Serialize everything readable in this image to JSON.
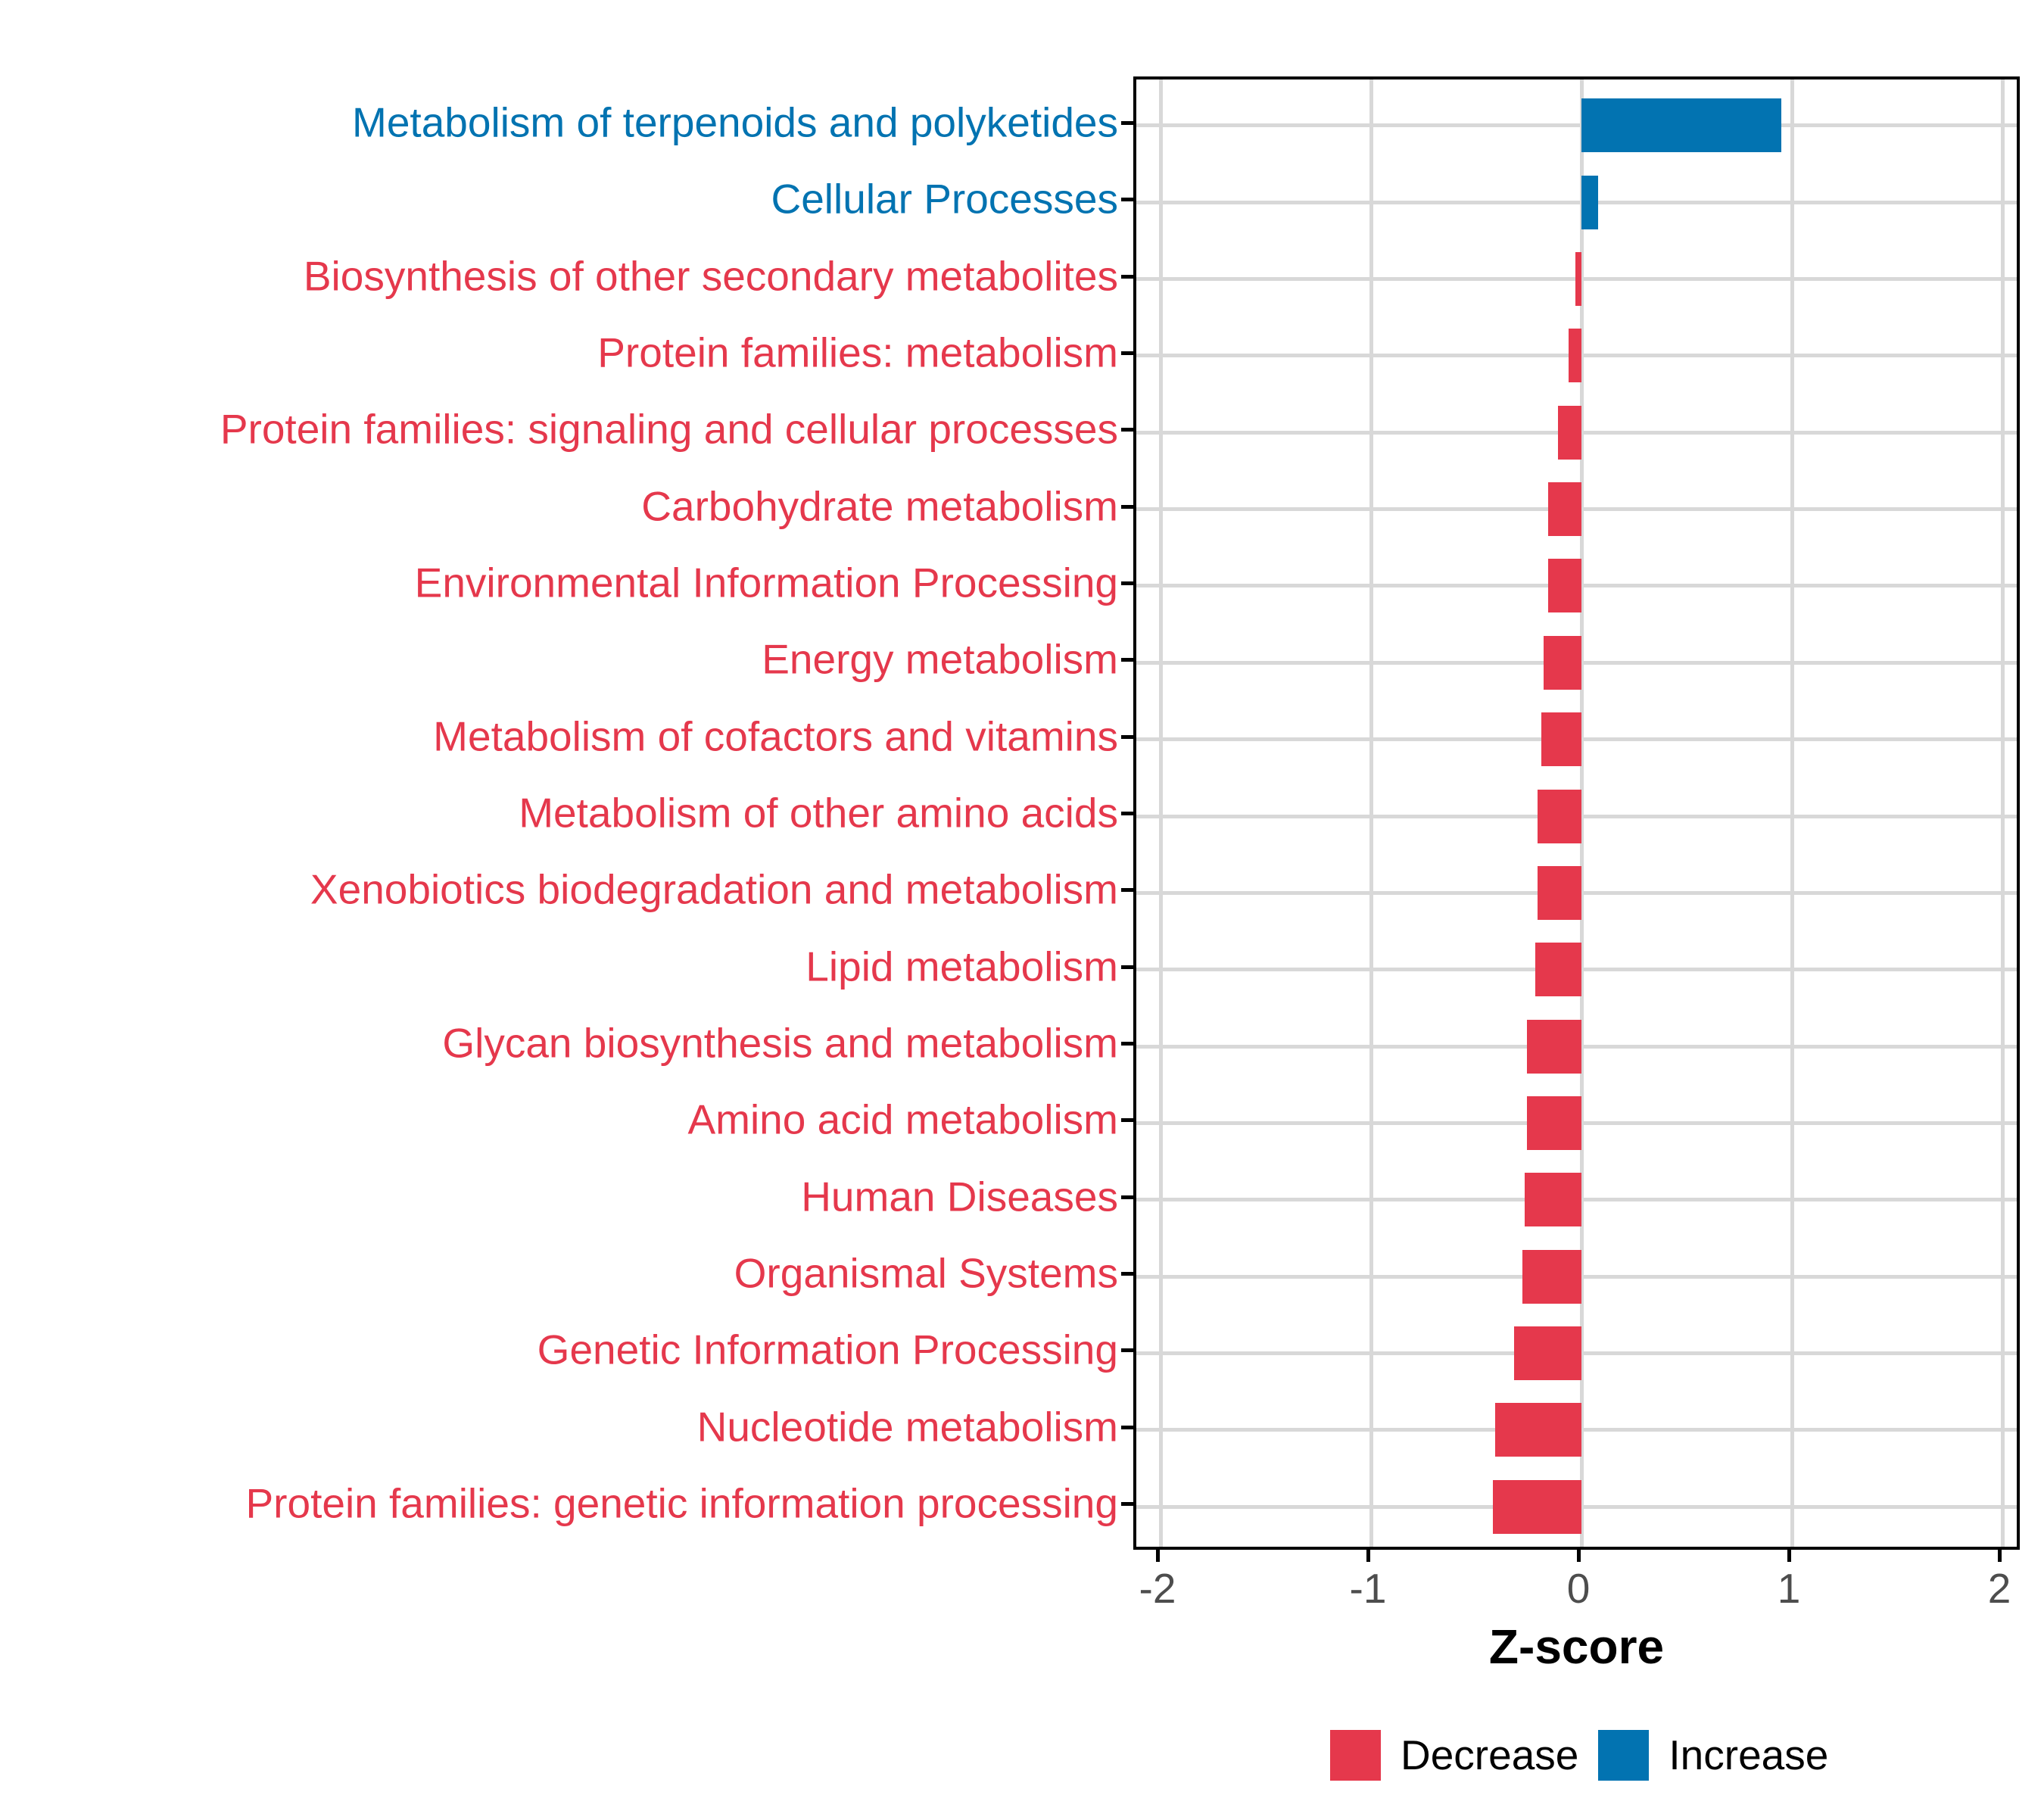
{
  "chart_data": {
    "type": "bar",
    "orientation": "horizontal",
    "title": "",
    "xlabel": "Z-score",
    "x_ticks": [
      -2,
      -1,
      0,
      1,
      2
    ],
    "xlim": [
      -2.1,
      2.1
    ],
    "grid": "major-vertical-and-row-lines",
    "legend_position": "bottom",
    "categories": [
      "Metabolism of terpenoids and polyketides",
      "Cellular Processes",
      "Biosynthesis of other secondary metabolites",
      "Protein families: metabolism",
      "Protein families: signaling and cellular processes",
      "Carbohydrate metabolism",
      "Environmental Information Processing",
      "Energy metabolism",
      "Metabolism of cofactors and vitamins",
      "Metabolism of other amino acids",
      "Xenobiotics biodegradation and metabolism",
      "Lipid metabolism",
      "Glycan biosynthesis and metabolism",
      "Amino acid metabolism",
      "Human Diseases",
      "Organismal Systems",
      "Genetic Information Processing",
      "Nucleotide metabolism",
      "Protein families: genetic information processing"
    ],
    "values": [
      0.95,
      0.08,
      -0.03,
      -0.06,
      -0.11,
      -0.16,
      -0.16,
      -0.18,
      -0.19,
      -0.21,
      -0.21,
      -0.22,
      -0.26,
      -0.26,
      -0.27,
      -0.28,
      -0.32,
      -0.41,
      -0.42
    ],
    "directions": [
      "increase",
      "increase",
      "decrease",
      "decrease",
      "decrease",
      "decrease",
      "decrease",
      "decrease",
      "decrease",
      "decrease",
      "decrease",
      "decrease",
      "decrease",
      "decrease",
      "decrease",
      "decrease",
      "decrease",
      "decrease",
      "decrease"
    ],
    "colors": {
      "decrease": "#E5384C",
      "increase": "#0273B1"
    },
    "legend": [
      {
        "label": "Decrease",
        "key": "decrease"
      },
      {
        "label": "Increase",
        "key": "increase"
      }
    ]
  }
}
